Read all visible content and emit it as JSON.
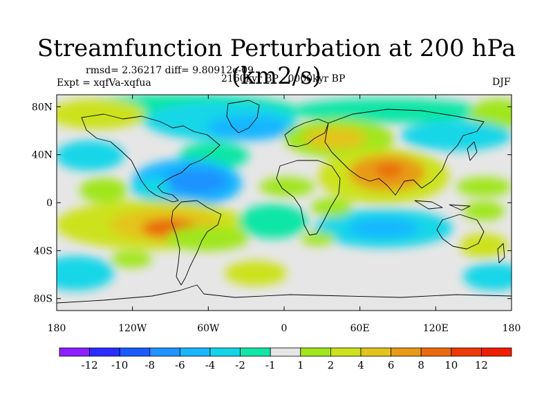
{
  "title": "Streamfunction Perturbation at 200 hPa (km2/s)",
  "stats_line": "rmsd= 2.36217 diff= 9.80912e-09",
  "experiment_line": "Expt = xqfVa-xqfua",
  "period_line": "2160kyr BP - 0000kyr BP",
  "season": "DJF",
  "lat_ticks": [
    "80N",
    "40N",
    "0",
    "40S",
    "80S"
  ],
  "lon_ticks": [
    "180",
    "120W",
    "60W",
    "0",
    "60E",
    "120E",
    "180"
  ],
  "colorbar": {
    "labels": [
      "-12",
      "-10",
      "-8",
      "-6",
      "-4",
      "-2",
      "-1",
      "1",
      "2",
      "4",
      "6",
      "8",
      "10",
      "12"
    ],
    "colors": [
      "#8c1eff",
      "#2b2dff",
      "#1a5bff",
      "#1e92ff",
      "#18b6ff",
      "#12d6e8",
      "#10e6a6",
      "#e6e6e6",
      "#a0e61b",
      "#cce21e",
      "#e3c41c",
      "#e89b15",
      "#ea6a0e",
      "#ec3a08",
      "#ee1e05"
    ]
  }
}
